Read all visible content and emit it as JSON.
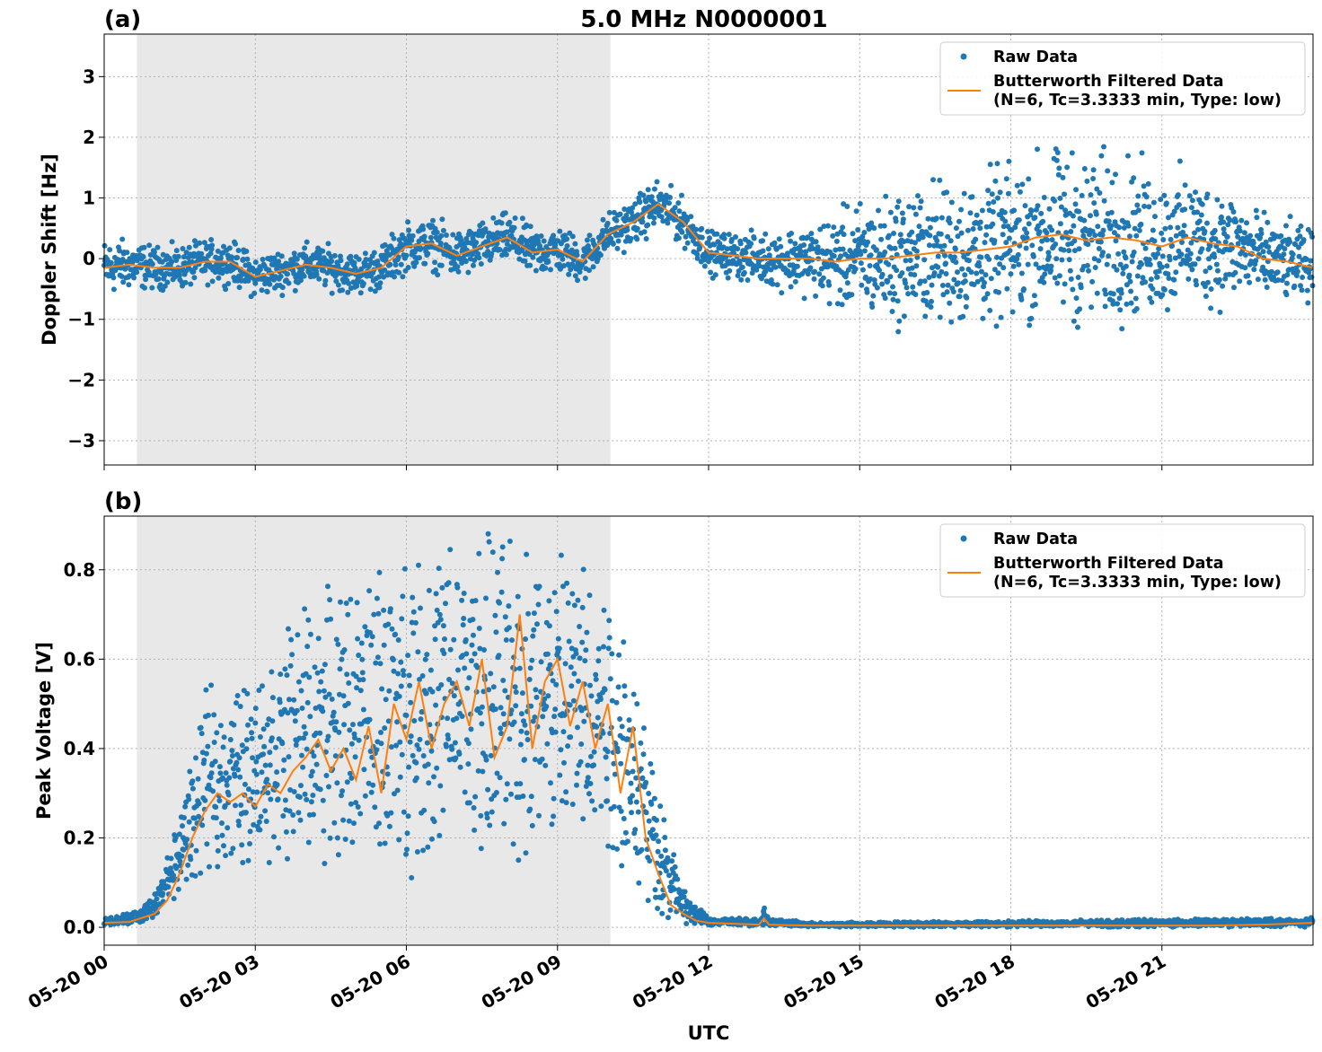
{
  "title": "5.0 MHz N0000001",
  "xlabel": "UTC",
  "x_tick_labels": [
    "05-20 00",
    "05-20 03",
    "05-20 06",
    "05-20 09",
    "05-20 12",
    "05-20 15",
    "05-20 18",
    "05-20 21"
  ],
  "legend": {
    "raw": "Raw Data",
    "filtered_line1": "Butterworth Filtered Data",
    "filtered_line2": "(N=6, Tc=3.3333 min, Type: low)"
  },
  "colors": {
    "raw": "#1f77b4",
    "filtered": "#ff7f0e",
    "shade": "#e8e8e8",
    "grid": "#b0b0b0"
  },
  "chart_data": [
    {
      "type": "scatter",
      "panel": "(a)",
      "ylabel": "Doppler Shift [Hz]",
      "x_unit": "hours UTC (05-20)",
      "xlim": [
        0,
        24
      ],
      "ylim": [
        -3.4,
        3.7
      ],
      "yticks": [
        3,
        2,
        1,
        0,
        -1,
        -2,
        -3
      ],
      "ytick_labels": [
        "3",
        "2",
        "1",
        "0",
        "−1",
        "−2",
        "−3"
      ],
      "grid": true,
      "legend_position": "upper-right",
      "shaded_x_range": [
        0.65,
        10.05
      ],
      "series": [
        {
          "name": "Butterworth Filtered Data",
          "kind": "line",
          "x": [
            0,
            0.5,
            1,
            1.5,
            2,
            2.5,
            3,
            3.5,
            4,
            4.5,
            5,
            5.5,
            6,
            6.5,
            7,
            7.5,
            8,
            8.5,
            9,
            9.5,
            10,
            10.5,
            11,
            11.5,
            12,
            12.5,
            13,
            13.5,
            14,
            14.5,
            15,
            15.5,
            16,
            16.5,
            17,
            17.5,
            18,
            18.5,
            19,
            19.5,
            20,
            20.5,
            21,
            21.5,
            22,
            22.5,
            23,
            23.5,
            24
          ],
          "y": [
            -0.15,
            -0.1,
            -0.15,
            -0.15,
            -0.05,
            -0.05,
            -0.3,
            -0.2,
            -0.1,
            -0.15,
            -0.25,
            -0.15,
            0.2,
            0.25,
            0.05,
            0.2,
            0.35,
            0.1,
            0.15,
            -0.05,
            0.4,
            0.6,
            0.9,
            0.6,
            0.1,
            0.05,
            0.0,
            0.0,
            0.0,
            -0.05,
            0.0,
            0.0,
            0.05,
            0.1,
            0.1,
            0.15,
            0.2,
            0.35,
            0.4,
            0.3,
            0.35,
            0.3,
            0.2,
            0.35,
            0.25,
            0.2,
            0.0,
            -0.05,
            -0.15
          ]
        }
      ],
      "raw_spread": {
        "x": [
          0,
          1,
          2,
          3,
          4,
          5,
          6,
          7,
          8,
          9,
          10,
          11,
          12,
          13,
          14,
          15,
          16,
          17,
          18,
          19,
          20,
          21,
          22,
          23,
          24
        ],
        "half_width": [
          0.4,
          0.3,
          0.3,
          0.3,
          0.3,
          0.3,
          0.35,
          0.35,
          0.35,
          0.35,
          0.3,
          0.35,
          0.3,
          0.35,
          0.5,
          0.8,
          0.95,
          1.05,
          1.1,
          1.2,
          1.2,
          1.0,
          0.9,
          0.6,
          0.5
        ]
      }
    },
    {
      "type": "scatter",
      "panel": "(b)",
      "ylabel": "Peak Voltage [V]",
      "x_unit": "hours UTC (05-20)",
      "xlim": [
        0,
        24
      ],
      "ylim": [
        -0.04,
        0.92
      ],
      "yticks": [
        0.0,
        0.2,
        0.4,
        0.6,
        0.8
      ],
      "ytick_labels": [
        "0.0",
        "0.2",
        "0.4",
        "0.6",
        "0.8"
      ],
      "grid": true,
      "legend_position": "upper-right",
      "shaded_x_range": [
        0.65,
        10.05
      ],
      "series": [
        {
          "name": "Butterworth Filtered Data",
          "kind": "line",
          "x": [
            0,
            0.5,
            1,
            1.25,
            1.5,
            1.75,
            2,
            2.25,
            2.5,
            2.75,
            3,
            3.25,
            3.5,
            3.75,
            4,
            4.25,
            4.5,
            4.75,
            5,
            5.25,
            5.5,
            5.75,
            6,
            6.25,
            6.5,
            6.75,
            7,
            7.25,
            7.5,
            7.75,
            8,
            8.25,
            8.5,
            8.75,
            9,
            9.25,
            9.5,
            9.75,
            10,
            10.25,
            10.5,
            10.75,
            11,
            11.25,
            11.5,
            11.75,
            12,
            12.5,
            13,
            13.1,
            13.2,
            13.5,
            14,
            15,
            16,
            17,
            18,
            19,
            20,
            21,
            22,
            23,
            24
          ],
          "y": [
            0.01,
            0.012,
            0.03,
            0.06,
            0.12,
            0.2,
            0.26,
            0.3,
            0.28,
            0.3,
            0.27,
            0.32,
            0.3,
            0.35,
            0.38,
            0.42,
            0.35,
            0.4,
            0.33,
            0.45,
            0.3,
            0.5,
            0.42,
            0.55,
            0.4,
            0.5,
            0.55,
            0.45,
            0.6,
            0.38,
            0.45,
            0.7,
            0.4,
            0.55,
            0.6,
            0.45,
            0.55,
            0.4,
            0.5,
            0.3,
            0.45,
            0.2,
            0.12,
            0.05,
            0.03,
            0.015,
            0.01,
            0.008,
            0.006,
            0.02,
            0.006,
            0.005,
            0.004,
            0.004,
            0.004,
            0.004,
            0.004,
            0.004,
            0.004,
            0.004,
            0.004,
            0.006,
            0.01
          ]
        }
      ],
      "raw_spread": {
        "x": [
          0,
          0.5,
          1,
          1.5,
          2,
          3,
          4,
          5,
          6,
          7,
          8,
          9,
          10,
          10.5,
          11,
          11.5,
          12,
          13,
          13.1,
          13.2,
          14,
          24
        ],
        "low": [
          0.005,
          0.005,
          0.01,
          0.06,
          0.1,
          0.12,
          0.12,
          0.1,
          0.1,
          0.1,
          0.1,
          0.12,
          0.1,
          0.05,
          0.02,
          0.005,
          0.002,
          0.002,
          0.002,
          0.002,
          0.0,
          0.0
        ],
        "high": [
          0.02,
          0.03,
          0.07,
          0.25,
          0.5,
          0.55,
          0.7,
          0.75,
          0.8,
          0.85,
          0.85,
          0.82,
          0.8,
          0.6,
          0.3,
          0.08,
          0.02,
          0.02,
          0.05,
          0.02,
          0.01,
          0.02
        ]
      }
    }
  ]
}
